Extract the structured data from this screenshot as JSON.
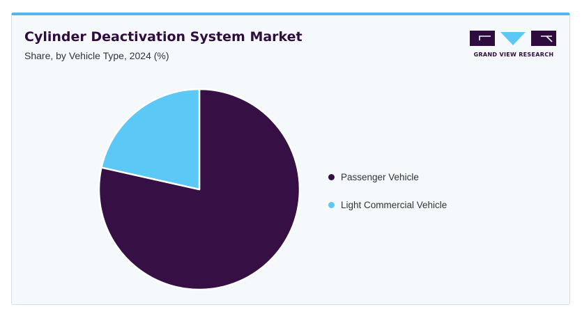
{
  "header": {
    "title": "Cylinder Deactivation System Market",
    "subtitle": "Share, by Vehicle Type, 2024 (%)"
  },
  "logo": {
    "text": "GRAND VIEW RESEARCH",
    "colors": {
      "dark": "#2e0d3e",
      "accent": "#5bc8f5"
    }
  },
  "chart_data": {
    "type": "pie",
    "title": "Cylinder Deactivation System Market",
    "subtitle": "Share, by Vehicle Type, 2024 (%)",
    "categories": [
      "Passenger Vehicle",
      "Light Commercial Vehicle"
    ],
    "values": [
      78.5,
      21.5
    ],
    "colors": [
      "#360f45",
      "#5bc8f5"
    ],
    "start_angle_deg": 0,
    "direction": "clockwise",
    "legend_position": "right"
  }
}
